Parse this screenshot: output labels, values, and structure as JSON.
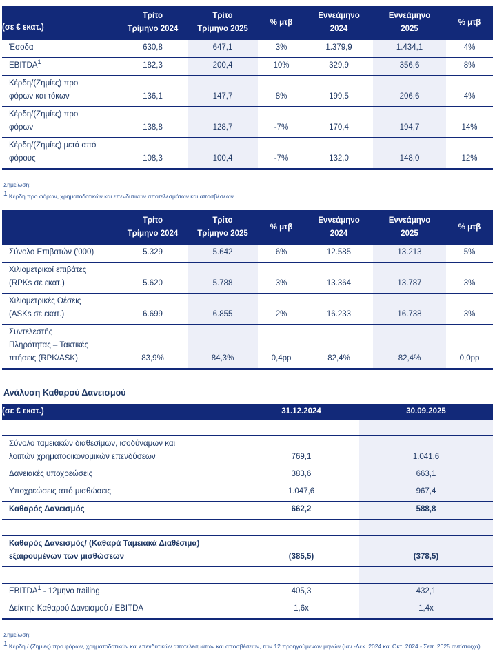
{
  "colors": {
    "header_navy": "#122979",
    "body_text_navy": "#1F3864",
    "highlight_column": "#EDEFF8",
    "note_blue": "#2E5496",
    "header_text": "#FFFFFF"
  },
  "financial_table": {
    "unit_label": "(σε € εκατ.)",
    "columns": [
      "Τρίτο\nΤρίμηνο 2024",
      "Τρίτο\nΤρίμηνο 2025",
      "% μτβ",
      "Εννεάμηνο\n2024",
      "Εννεάμηνο\n2025",
      "% μτβ"
    ],
    "rows": [
      {
        "label": "Έσοδα",
        "values": [
          "630,8",
          "647,1",
          "3%",
          "1.379,9",
          "1.434,1",
          "4%"
        ]
      },
      {
        "label_pre": "EBITDA",
        "label_sup": "1",
        "values": [
          "182,3",
          "200,4",
          "10%",
          "329,9",
          "356,6",
          "8%"
        ]
      },
      {
        "label": "Κέρδη/(Ζημίες) προ\nφόρων και τόκων",
        "values": [
          "136,1",
          "147,7",
          "8%",
          "199,5",
          "206,6",
          "4%"
        ]
      },
      {
        "label": "Κέρδη/(Ζημίες) προ\nφόρων",
        "values": [
          "138,8",
          "128,7",
          "-7%",
          "170,4",
          "194,7",
          "14%"
        ]
      },
      {
        "label": "Κέρδη/(Ζημίες) μετά από\nφόρους",
        "values": [
          "108,3",
          "100,4",
          "-7%",
          "132,0",
          "148,0",
          "12%"
        ]
      }
    ],
    "note": {
      "heading": "Σημείωση:",
      "sup": "1",
      "text": " Κέρδη προ φόρων, χρηματοδοτικών και επενδυτικών αποτελεσμάτων και αποσβέσεων."
    }
  },
  "traffic_table": {
    "columns": [
      "Τρίτο\nΤρίμηνο 2024",
      "Τρίτο\nΤρίμηνο 2025",
      "% μτβ",
      "Εννεάμηνο\n2024",
      "Εννεάμηνο\n2025",
      "% μτβ"
    ],
    "rows": [
      {
        "label": "Σύνολο Επιβατών ('000)",
        "values": [
          "5.329",
          "5.642",
          "6%",
          "12.585",
          "13.213",
          "5%"
        ]
      },
      {
        "label": "Χιλιομετρικοί επιβάτες\n(RPKs σε εκατ.)",
        "values": [
          "5.620",
          "5.788",
          "3%",
          "13.364",
          "13.787",
          "3%"
        ]
      },
      {
        "label": "Χιλιομετρικές Θέσεις\n(ASKs σε εκατ.)",
        "values": [
          "6.699",
          "6.855",
          "2%",
          "16.233",
          "16.738",
          "3%"
        ]
      },
      {
        "label": "Συντελεστής\nΠληρότητας – Τακτικές\nπτήσεις (RPK/ASK)",
        "values": [
          "83,9%",
          "84,3%",
          "0,4pp",
          "82,4%",
          "82,4%",
          "0,0pp"
        ]
      }
    ]
  },
  "net_debt_section": {
    "title": "Ανάλυση Καθαρού Δανεισμού",
    "unit_label": "(σε € εκατ.)",
    "columns": [
      "31.12.2024",
      "30.09.2025"
    ],
    "rows": [
      {
        "label": "Σύνολο ταμειακών διαθεσίμων, ισοδύναμων και\nλοιπών χρηματοοικονομικών επενδύσεων",
        "values": [
          "769,1",
          "1.041,6"
        ]
      },
      {
        "label": "Δανειακές υποχρεώσεις",
        "values": [
          "383,6",
          "663,1"
        ]
      },
      {
        "label": "Υποχρεώσεις από μισθώσεις",
        "values": [
          "1.047,6",
          "967,4"
        ]
      },
      {
        "label": "Καθαρός Δανεισμός",
        "values": [
          "662,2",
          "588,8"
        ]
      },
      {
        "label": "Καθαρός Δανεισμός/ (Καθαρά Ταμειακά Διαθέσιμα)\nεξαιρουμένων των μισθώσεων",
        "values": [
          "(385,5)",
          "(378,5)"
        ]
      },
      {
        "label_pre": "EBITDA",
        "label_sup": "1",
        "label_post": " - 12μηνο trailing",
        "values": [
          "405,3",
          "432,1"
        ]
      },
      {
        "label": "Δείκτης Καθαρού Δανεισμού / EBITDA",
        "values": [
          "1,6x",
          "1,4x"
        ]
      }
    ],
    "note": {
      "heading": "Σημείωση:",
      "sup": "1",
      "text": " Κέρδη / (Ζημίες) προ φόρων, χρηματοδοτικών και επενδυτικών αποτελεσμάτων και αποσβέσεων, των 12 προηγούμενων μηνών (Ιαν.-Δεκ. 2024 και Οκτ. 2024 - Σεπ. 2025 αντίστοιχα)."
    }
  }
}
